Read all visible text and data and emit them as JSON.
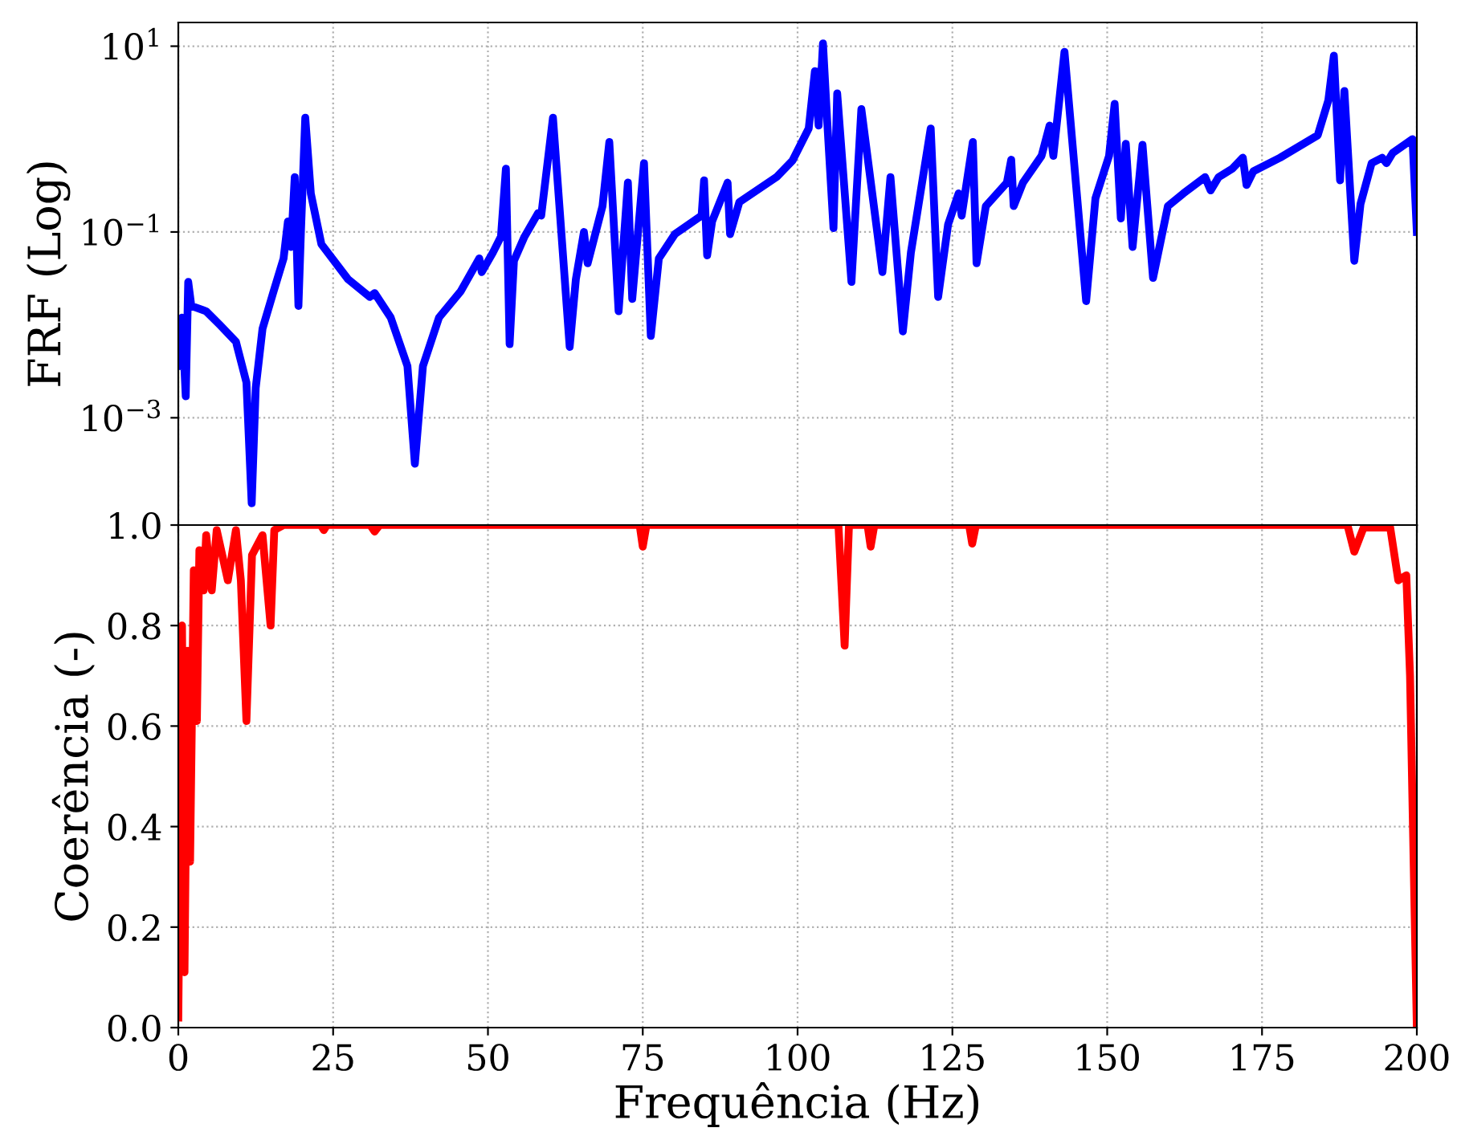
{
  "chart_data": [
    {
      "type": "line",
      "ylabel": "FRF (Log)",
      "log": true,
      "grid": true,
      "tick_labels": "y",
      "line_style": "solid",
      "xlim": [
        0,
        200
      ],
      "xticks": [
        0,
        25,
        50,
        75,
        100,
        125,
        150,
        175,
        200
      ],
      "ylim": [
        7e-05,
        18
      ],
      "yticks": [
        {
          "value": 10,
          "label": "10$^{1}$"
        },
        {
          "value": 0.1,
          "label": "10$^{−1}$"
        },
        {
          "value": 0.001,
          "label": "10$^{−3}$"
        }
      ],
      "series": [
        {
          "color": "#0000ff",
          "x": [
            0.17,
            0.6,
            1.2,
            1.6,
            2.1,
            4.5,
            6.7,
            9.3,
            11.0,
            11.85,
            12.5,
            13.6,
            15.3,
            17.0,
            17.7,
            18.2,
            18.8,
            19.4,
            19.8,
            20.5,
            21.4,
            23.1,
            27.4,
            30.9,
            31.7,
            34.3,
            37.0,
            38.2,
            39.5,
            42.1,
            45.6,
            48.6,
            49.0,
            50.8,
            52.1,
            52.9,
            53.5,
            54.2,
            55.9,
            58.1,
            58.6,
            60.5,
            63.2,
            64.2,
            65.5,
            66.1,
            68.5,
            69.6,
            71.1,
            72.6,
            73.3,
            75.2,
            76.3,
            77.6,
            80.2,
            84.5,
            84.9,
            85.4,
            86.2,
            88.7,
            89.1,
            90.6,
            96.6,
            99.2,
            101.8,
            102.8,
            103.4,
            104.1,
            104.8,
            105.8,
            106.4,
            108.7,
            110.3,
            113.7,
            115.0,
            117.0,
            118.3,
            121.5,
            122.7,
            124.3,
            126.0,
            126.5,
            128.3,
            128.9,
            130.4,
            133.8,
            134.5,
            134.9,
            136.4,
            139.4,
            140.7,
            141.3,
            143.1,
            146.6,
            148.1,
            150.3,
            151.2,
            152.2,
            153.0,
            154.1,
            155.7,
            157.4,
            159.8,
            162.3,
            165.8,
            166.7,
            168.0,
            170.2,
            171.9,
            172.5,
            173.6,
            177.9,
            184.0,
            185.7,
            186.6,
            187.6,
            188.3,
            189.9,
            190.9,
            192.7,
            194.4,
            195.1,
            196.1,
            199.3,
            200
          ],
          "values": [
            0.0036,
            0.012,
            0.0017,
            0.029,
            0.016,
            0.014,
            0.01,
            0.0066,
            0.0024,
            0.00012,
            0.0021,
            0.0091,
            0.022,
            0.052,
            0.13,
            0.069,
            0.39,
            0.016,
            0.1,
            1.7,
            0.26,
            0.074,
            0.031,
            0.02,
            0.022,
            0.012,
            0.0036,
            0.00032,
            0.0036,
            0.012,
            0.023,
            0.052,
            0.037,
            0.06,
            0.089,
            0.48,
            0.0062,
            0.049,
            0.089,
            0.16,
            0.15,
            1.7,
            0.0058,
            0.031,
            0.1,
            0.046,
            0.19,
            0.93,
            0.014,
            0.34,
            0.019,
            0.55,
            0.0076,
            0.052,
            0.095,
            0.15,
            0.36,
            0.056,
            0.13,
            0.34,
            0.095,
            0.21,
            0.39,
            0.59,
            1.3,
            5.4,
            1.4,
            10.7,
            1.5,
            0.11,
            3.1,
            0.029,
            2.1,
            0.037,
            0.39,
            0.0085,
            0.06,
            1.3,
            0.02,
            0.12,
            0.26,
            0.15,
            0.93,
            0.046,
            0.19,
            0.34,
            0.6,
            0.19,
            0.34,
            0.66,
            1.4,
            0.66,
            8.7,
            0.018,
            0.23,
            0.66,
            2.4,
            0.14,
            0.89,
            0.069,
            0.87,
            0.032,
            0.19,
            0.26,
            0.39,
            0.28,
            0.39,
            0.48,
            0.63,
            0.32,
            0.45,
            0.63,
            1.1,
            2.6,
            7.9,
            0.36,
            3.3,
            0.049,
            0.2,
            0.55,
            0.63,
            0.55,
            0.71,
            1.0,
            0.1
          ]
        }
      ]
    },
    {
      "type": "line",
      "xlabel": "Frequência (Hz)",
      "ylabel": "Coerência (-)",
      "grid": true,
      "line_style": "solid",
      "xlim": [
        0,
        200
      ],
      "xticks": [
        0,
        25,
        50,
        75,
        100,
        125,
        150,
        175,
        200
      ],
      "ylim": [
        0,
        1
      ],
      "yticks": [
        {
          "value": 0,
          "label": "0.0"
        },
        {
          "value": 0.2,
          "label": "0.2"
        },
        {
          "value": 0.4,
          "label": "0.4"
        },
        {
          "value": 0.6,
          "label": "0.6"
        },
        {
          "value": 0.8,
          "label": "0.8"
        },
        {
          "value": 1,
          "label": "1.0"
        }
      ],
      "series": [
        {
          "color": "#ff0000",
          "x": [
            0,
            0.6,
            1.0,
            1.5,
            1.9,
            2.5,
            3.0,
            3.4,
            4.1,
            4.5,
            5.4,
            6.2,
            8.0,
            9.3,
            10.1,
            11.0,
            11.9,
            13.6,
            14.9,
            15.5,
            17,
            23.0,
            23.5,
            24.0,
            31.0,
            31.7,
            32.5,
            74.5,
            75.0,
            75.6,
            106.6,
            107.6,
            108.3,
            111.3,
            111.8,
            112.4,
            127.7,
            128.2,
            128.8,
            188.8,
            189.9,
            191.4,
            195.7,
            197.0,
            198.3,
            198.9,
            200.0
          ],
          "values": [
            0.02,
            0.8,
            0.11,
            0.75,
            0.33,
            0.91,
            0.61,
            0.95,
            0.87,
            0.98,
            0.87,
            0.99,
            0.89,
            0.99,
            0.89,
            0.61,
            0.94,
            0.98,
            0.8,
            0.99,
            1.0,
            1.0,
            0.99,
            1.0,
            1.0,
            0.987,
            1.0,
            1.0,
            0.957,
            1.0,
            1.0,
            0.76,
            1.0,
            1.0,
            0.957,
            1.0,
            1.0,
            0.963,
            1.0,
            1.0,
            0.947,
            0.995,
            0.995,
            0.89,
            0.9,
            0.7,
            0.0
          ]
        }
      ]
    }
  ]
}
